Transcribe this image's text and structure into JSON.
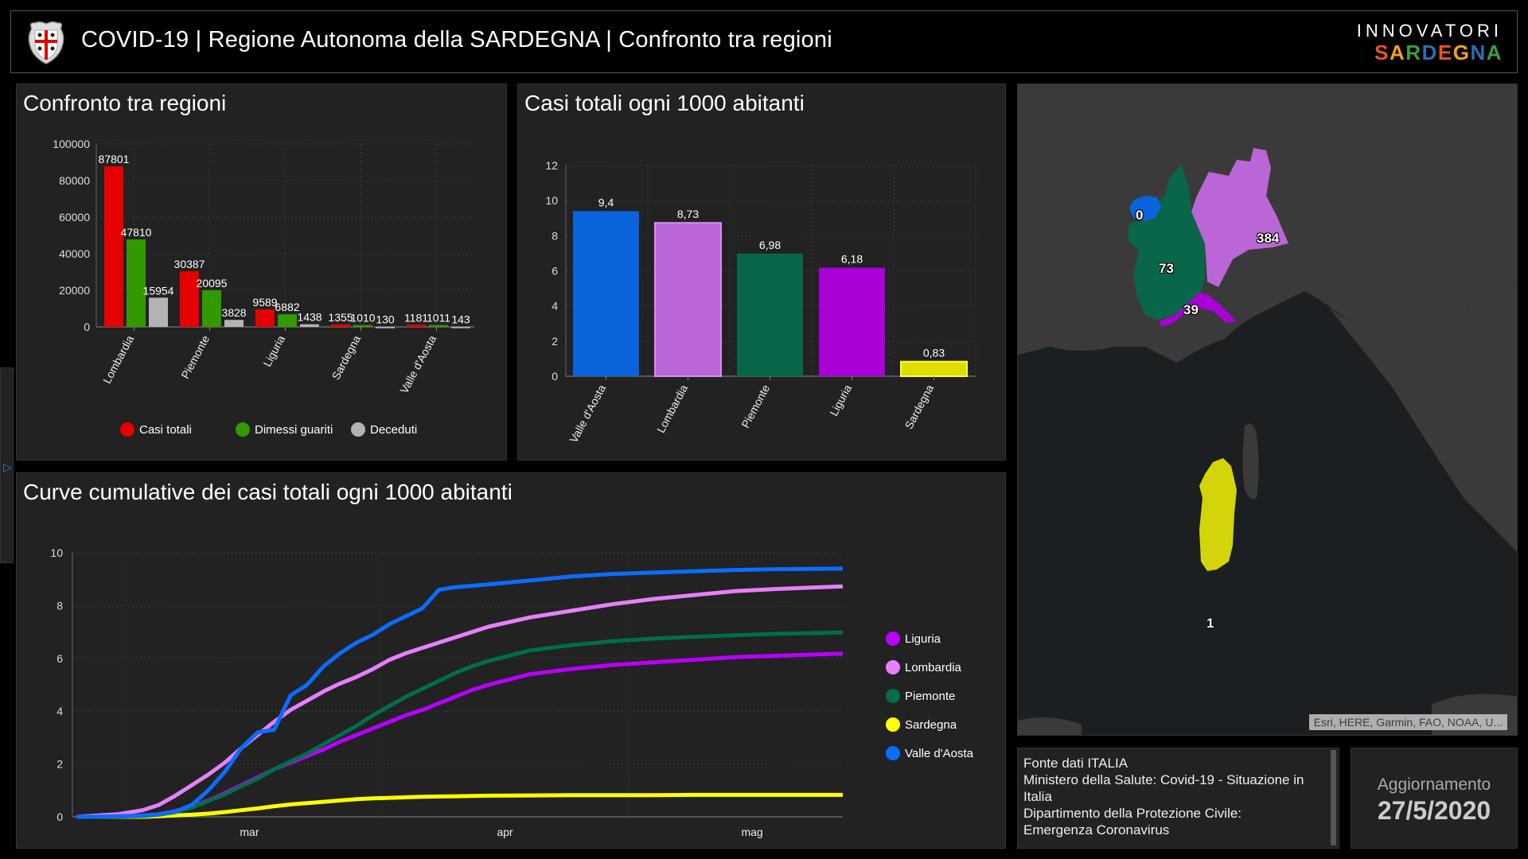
{
  "header": {
    "title": "COVID-19 | Regione Autonoma della SARDEGNA | Confronto tra regioni",
    "brand_top": "INNOVATORI",
    "brand_bottom": "SARDEGNA",
    "brand_colors": [
      "#e8522c",
      "#f2a31b",
      "#3a9e3f",
      "#2a6fb5",
      "#e8522c",
      "#f2a31b",
      "#2a6fb5",
      "#3a9e3f",
      "#e8522c"
    ]
  },
  "panels": {
    "regions_title": "Confronto tra regioni",
    "per1000_title": "Casi totali ogni 1000 abitanti",
    "cumulative_title": "Curve cumulative dei casi totali ogni 1000 abitanti"
  },
  "chart_data": [
    {
      "type": "bar",
      "title": "Confronto tra regioni",
      "categories": [
        "Lombardia",
        "Piemonte",
        "Liguria",
        "Sardegna",
        "Valle d'Aosta"
      ],
      "series": [
        {
          "name": "Casi totali",
          "color": "#e60000",
          "values": [
            87801,
            30387,
            9589,
            1355,
            1181
          ]
        },
        {
          "name": "Dimessi guariti",
          "color": "#339900",
          "values": [
            47810,
            20095,
            6882,
            1010,
            1011
          ]
        },
        {
          "name": "Deceduti",
          "color": "#b3b3b3",
          "values": [
            15954,
            3828,
            1438,
            130,
            143
          ]
        }
      ],
      "yticks": [
        0,
        20000,
        40000,
        60000,
        80000,
        100000
      ],
      "ylim": [
        0,
        100000
      ],
      "grid": true,
      "legend": "bottom"
    },
    {
      "type": "bar",
      "title": "Casi totali ogni 1000 abitanti",
      "categories": [
        "Valle d'Aosta",
        "Lombardia",
        "Piemonte",
        "Liguria",
        "Sardegna"
      ],
      "values": [
        9.4,
        8.73,
        6.98,
        6.18,
        0.83
      ],
      "value_labels": [
        "9,4",
        "8,73",
        "6,98",
        "6,18",
        "0,83"
      ],
      "colors": [
        "#0a64dc",
        "#bb66d6",
        "#09664a",
        "#a800d6",
        "#dede00"
      ],
      "yticks": [
        0,
        2,
        4,
        6,
        8,
        10,
        12
      ],
      "ylim": [
        0,
        12
      ],
      "grid": true
    },
    {
      "type": "line",
      "title": "Curve cumulative dei casi totali ogni 1000 abitanti",
      "x_range": [
        "2020-02-24",
        "2020-05-27"
      ],
      "xtick_labels": [
        "mar",
        "apr",
        "mag"
      ],
      "yticks": [
        0,
        2,
        4,
        6,
        8,
        10
      ],
      "ylim": [
        0,
        10
      ],
      "grid": true,
      "legend": "right",
      "x_days": [
        0,
        5,
        8,
        10,
        12,
        14,
        16,
        18,
        20,
        22,
        24,
        26,
        28,
        30,
        32,
        34,
        36,
        38,
        40,
        42,
        44,
        46,
        48,
        50,
        55,
        60,
        65,
        70,
        75,
        80,
        85,
        93
      ],
      "series": [
        {
          "name": "Liguria",
          "color": "#b800ff",
          "values": [
            0,
            0.02,
            0.05,
            0.1,
            0.22,
            0.4,
            0.62,
            0.9,
            1.2,
            1.5,
            1.8,
            2.05,
            2.3,
            2.55,
            2.85,
            3.1,
            3.35,
            3.6,
            3.85,
            4.05,
            4.3,
            4.55,
            4.8,
            5.0,
            5.4,
            5.6,
            5.75,
            5.85,
            5.95,
            6.05,
            6.1,
            6.18
          ]
        },
        {
          "name": "Lombardia",
          "color": "#e680ff",
          "values": [
            0,
            0.1,
            0.25,
            0.45,
            0.8,
            1.2,
            1.6,
            2.05,
            2.6,
            3.1,
            3.6,
            4.05,
            4.4,
            4.75,
            5.05,
            5.3,
            5.6,
            5.95,
            6.2,
            6.4,
            6.6,
            6.8,
            7.0,
            7.2,
            7.55,
            7.8,
            8.05,
            8.25,
            8.4,
            8.55,
            8.63,
            8.73
          ]
        },
        {
          "name": "Piemonte",
          "color": "#006e4a",
          "values": [
            0,
            0.01,
            0.03,
            0.08,
            0.18,
            0.35,
            0.6,
            0.85,
            1.15,
            1.45,
            1.8,
            2.1,
            2.4,
            2.75,
            3.1,
            3.45,
            3.85,
            4.2,
            4.55,
            4.85,
            5.15,
            5.45,
            5.7,
            5.9,
            6.3,
            6.5,
            6.65,
            6.75,
            6.82,
            6.88,
            6.93,
            6.98
          ]
        },
        {
          "name": "Sardegna",
          "color": "#ffff00",
          "values": [
            0,
            0,
            0,
            0.02,
            0.05,
            0.08,
            0.12,
            0.18,
            0.25,
            0.32,
            0.4,
            0.47,
            0.52,
            0.57,
            0.62,
            0.67,
            0.7,
            0.72,
            0.74,
            0.76,
            0.77,
            0.78,
            0.79,
            0.8,
            0.81,
            0.82,
            0.82,
            0.82,
            0.83,
            0.83,
            0.83,
            0.83
          ]
        },
        {
          "name": "Valle d'Aosta",
          "color": "#0a6dff",
          "values": [
            0,
            0.02,
            0.05,
            0.1,
            0.2,
            0.45,
            1.0,
            1.7,
            2.6,
            3.2,
            3.3,
            4.6,
            5.0,
            5.7,
            6.2,
            6.6,
            6.9,
            7.3,
            7.6,
            7.9,
            8.6,
            8.7,
            8.75,
            8.8,
            8.95,
            9.1,
            9.2,
            9.25,
            9.3,
            9.35,
            9.38,
            9.4
          ]
        }
      ]
    }
  ],
  "map": {
    "labels": [
      {
        "region": "Valle d'Aosta",
        "value": "0",
        "color": "#0a64dc"
      },
      {
        "region": "Lombardia",
        "value": "384",
        "color": "#bb66d6"
      },
      {
        "region": "Piemonte",
        "value": "73",
        "color": "#09664a"
      },
      {
        "region": "Liguria",
        "value": "39",
        "color": "#a800d6"
      },
      {
        "region": "Sardegna",
        "value": "1",
        "color": "#d4d40a"
      }
    ],
    "attribution": "Esri, HERE, Garmin, FAO, NOAA, U..."
  },
  "source": {
    "lines": [
      "Fonte dati ITALIA",
      "Ministero della Salute: Covid-19 - Situazione in Italia",
      "Dipartimento della Protezione Civile: Emergenza Coronavirus"
    ]
  },
  "update": {
    "label": "Aggiornamento",
    "date": "27/5/2020"
  },
  "icons": {
    "crest": "sardinia-coat-of-arms-icon",
    "side_panel_toggle": "chevron-right-icon"
  }
}
